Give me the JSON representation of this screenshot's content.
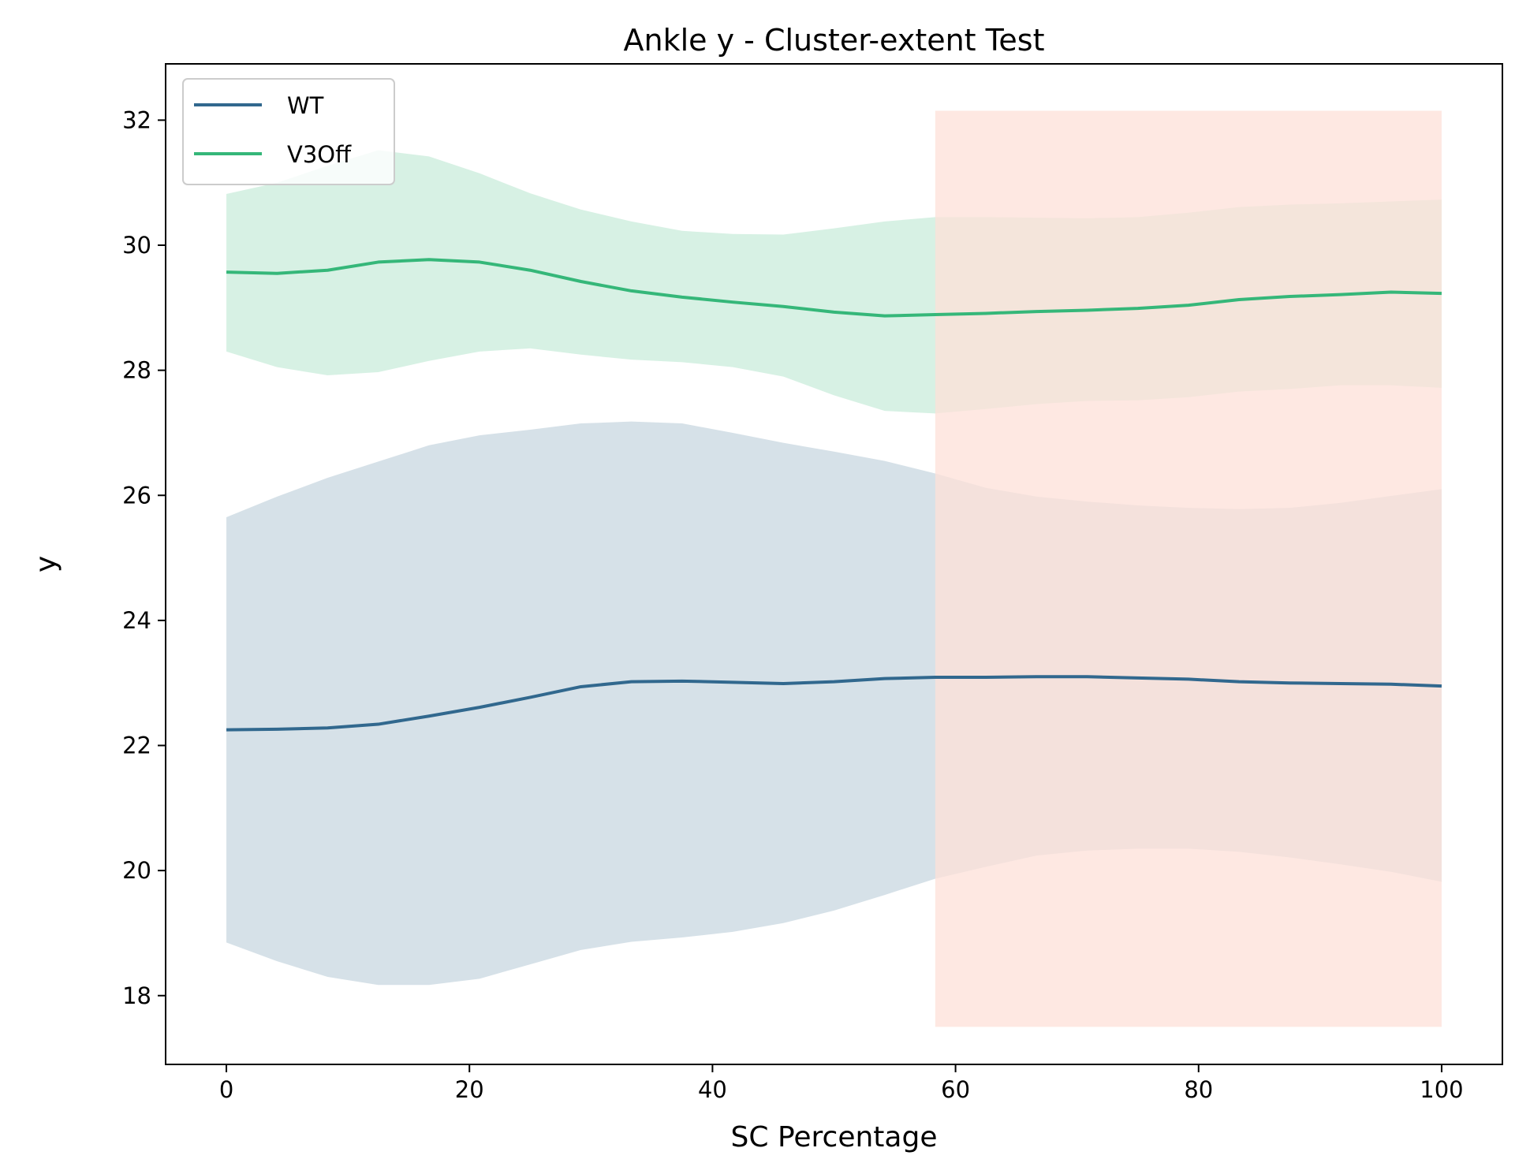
{
  "chart_data": {
    "type": "line",
    "title": "Ankle y - Cluster-extent Test",
    "xlabel": "SC Percentage",
    "ylabel": "y",
    "xlim": [
      -5,
      105
    ],
    "ylim": [
      16.9,
      32.9
    ],
    "xticks": [
      0,
      20,
      40,
      60,
      80,
      100
    ],
    "yticks": [
      18,
      20,
      22,
      24,
      26,
      28,
      30,
      32
    ],
    "grid": false,
    "legend_position": "top-left",
    "x": [
      0,
      4.17,
      8.33,
      12.5,
      16.67,
      20.83,
      25,
      29.17,
      33.33,
      37.5,
      41.67,
      45.83,
      50,
      54.17,
      58.33,
      62.5,
      66.67,
      70.83,
      75,
      79.17,
      83.33,
      87.5,
      91.67,
      95.83,
      100
    ],
    "series": [
      {
        "name": "WT",
        "color": "#31688e",
        "mean": [
          22.25,
          22.26,
          22.28,
          22.34,
          22.47,
          22.61,
          22.77,
          22.94,
          23.02,
          23.03,
          23.01,
          22.99,
          23.02,
          23.07,
          23.09,
          23.09,
          23.1,
          23.1,
          23.08,
          23.06,
          23.02,
          23.0,
          22.99,
          22.98,
          22.95
        ],
        "upper": [
          25.65,
          25.98,
          26.28,
          26.54,
          26.8,
          26.96,
          27.05,
          27.15,
          27.18,
          27.15,
          27.0,
          26.84,
          26.7,
          26.55,
          26.35,
          26.12,
          25.98,
          25.9,
          25.84,
          25.8,
          25.78,
          25.8,
          25.88,
          25.99,
          26.1
        ],
        "lower": [
          18.85,
          18.55,
          18.3,
          18.17,
          18.17,
          18.27,
          18.5,
          18.73,
          18.86,
          18.93,
          19.02,
          19.16,
          19.36,
          19.61,
          19.87,
          20.06,
          20.24,
          20.32,
          20.35,
          20.35,
          20.3,
          20.21,
          20.1,
          19.98,
          19.82
        ]
      },
      {
        "name": "V3Off",
        "color": "#35b779",
        "mean": [
          29.57,
          29.55,
          29.6,
          29.73,
          29.77,
          29.73,
          29.6,
          29.42,
          29.27,
          29.17,
          29.09,
          29.02,
          28.93,
          28.87,
          28.89,
          28.91,
          28.94,
          28.96,
          28.99,
          29.04,
          29.13,
          29.18,
          29.21,
          29.25,
          29.23
        ],
        "upper": [
          30.82,
          31.0,
          31.27,
          31.52,
          31.42,
          31.15,
          30.83,
          30.57,
          30.38,
          30.23,
          30.18,
          30.17,
          30.27,
          30.38,
          30.45,
          30.45,
          30.44,
          30.43,
          30.45,
          30.52,
          30.61,
          30.65,
          30.67,
          30.7,
          30.73
        ],
        "lower": [
          28.3,
          28.05,
          27.92,
          27.97,
          28.15,
          28.3,
          28.35,
          28.25,
          28.17,
          28.13,
          28.05,
          27.9,
          27.6,
          27.35,
          27.31,
          27.38,
          27.46,
          27.51,
          27.52,
          27.57,
          27.66,
          27.7,
          27.76,
          27.76,
          27.72
        ]
      }
    ],
    "highlight_regions": [
      {
        "x_start": 58.33,
        "x_end": 100,
        "y_start": 17.5,
        "y_end": 32.15,
        "color": "#fde0d8"
      }
    ]
  }
}
